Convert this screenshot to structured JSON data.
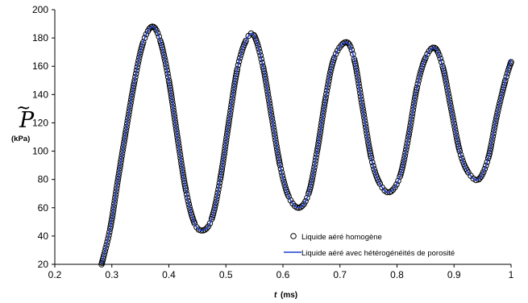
{
  "chart_data": {
    "type": "line",
    "title": "",
    "xlabel": {
      "var": "t",
      "unit": "(ms)"
    },
    "ylabel": {
      "symbol": "P",
      "accent": "~",
      "unit": "(kPa)"
    },
    "xlim": [
      0.2,
      1.0
    ],
    "ylim": [
      20,
      200
    ],
    "xticks": [
      "0.2",
      "0.3",
      "0.4",
      "0.5",
      "0.6",
      "0.7",
      "0.8",
      "0.9",
      "1"
    ],
    "yticks": [
      "20",
      "40",
      "60",
      "80",
      "100",
      "120",
      "140",
      "160",
      "180",
      "200"
    ],
    "grid": false,
    "legend_position": "lower-right",
    "series": [
      {
        "name": "Liquide aéré homogène",
        "style": "markers",
        "marker": "open-circle",
        "color": "#000000",
        "x": [
          0.282,
          0.297,
          0.31,
          0.325,
          0.34,
          0.355,
          0.371,
          0.385,
          0.4,
          0.415,
          0.43,
          0.445,
          0.46,
          0.475,
          0.49,
          0.505,
          0.52,
          0.535,
          0.549,
          0.565,
          0.58,
          0.595,
          0.61,
          0.628,
          0.645,
          0.66,
          0.675,
          0.69,
          0.711,
          0.725,
          0.74,
          0.755,
          0.77,
          0.787,
          0.805,
          0.82,
          0.835,
          0.85,
          0.866,
          0.88,
          0.895,
          0.91,
          0.925,
          0.943,
          0.96,
          0.975,
          0.99,
          1.0
        ],
        "y": [
          20,
          45,
          78,
          115,
          150,
          177,
          188,
          178,
          150,
          110,
          72,
          49,
          44,
          52,
          80,
          120,
          158,
          178,
          182,
          160,
          125,
          90,
          68,
          60,
          70,
          100,
          138,
          166,
          177,
          165,
          130,
          95,
          77,
          71,
          82,
          110,
          145,
          166,
          173,
          160,
          130,
          100,
          85,
          80,
          95,
          125,
          150,
          163
        ]
      },
      {
        "name": "Liquide aéré avec hétérogénéités de porosité",
        "style": "line",
        "color": "#1f3fd1",
        "x": [
          0.282,
          0.297,
          0.31,
          0.325,
          0.34,
          0.355,
          0.371,
          0.385,
          0.4,
          0.415,
          0.43,
          0.445,
          0.46,
          0.475,
          0.49,
          0.505,
          0.52,
          0.535,
          0.549,
          0.565,
          0.58,
          0.595,
          0.61,
          0.628,
          0.645,
          0.66,
          0.675,
          0.69,
          0.711,
          0.725,
          0.74,
          0.755,
          0.77,
          0.787,
          0.805,
          0.82,
          0.835,
          0.85,
          0.866,
          0.88,
          0.895,
          0.91,
          0.925,
          0.943,
          0.96,
          0.975,
          0.99,
          1.0
        ],
        "y": [
          20,
          45,
          78,
          115,
          150,
          177,
          188,
          178,
          150,
          110,
          72,
          49,
          44,
          52,
          80,
          120,
          158,
          178,
          182,
          160,
          125,
          90,
          68,
          60,
          70,
          100,
          138,
          166,
          177,
          165,
          130,
          95,
          77,
          71,
          82,
          110,
          145,
          166,
          173,
          160,
          130,
          100,
          85,
          80,
          95,
          125,
          150,
          165
        ]
      }
    ]
  }
}
